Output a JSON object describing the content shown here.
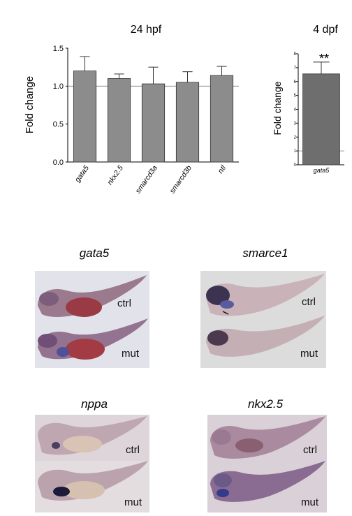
{
  "chart_data": [
    {
      "type": "bar",
      "title": "24 hpf",
      "ylabel": "Fold change",
      "xlabel": "",
      "categories": [
        "gata5",
        "nkx2.5",
        "smarcd3a",
        "smarcd3b",
        "ntl"
      ],
      "values": [
        1.2,
        1.1,
        1.03,
        1.05,
        1.14
      ],
      "errors": [
        0.19,
        0.06,
        0.22,
        0.14,
        0.12
      ],
      "ylim": [
        0,
        1.5
      ],
      "yticks": [
        "0.0",
        "0.5",
        "1.0",
        "1.5"
      ],
      "reference_line": 1.0,
      "bar_color": "#8c8c8c"
    },
    {
      "type": "bar",
      "title": "4 dpf",
      "ylabel": "Fold change",
      "xlabel": "",
      "categories": [
        "gata5"
      ],
      "values": [
        6.55
      ],
      "errors": [
        0.85
      ],
      "ylim": [
        0,
        8
      ],
      "yticks": [
        "0",
        "1",
        "2",
        "3",
        "4",
        "5",
        "6",
        "7",
        "8"
      ],
      "reference_line": 1.0,
      "significance": "**",
      "bar_color": "#6e6e6e"
    }
  ],
  "panels": [
    {
      "title": "gata5",
      "labels": [
        "ctrl",
        "mut"
      ]
    },
    {
      "title": "smarce1",
      "labels": [
        "ctrl",
        "mut"
      ]
    },
    {
      "title": "nppa",
      "labels": [
        "ctrl",
        "mut"
      ]
    },
    {
      "title": "nkx2.5",
      "labels": [
        "ctrl",
        "mut"
      ]
    }
  ]
}
